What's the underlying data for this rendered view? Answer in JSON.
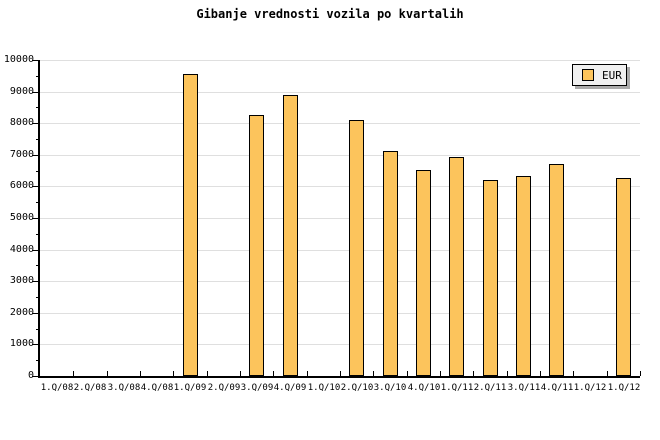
{
  "title": "Gibanje vrednosti vozila po kvartalih",
  "legend": {
    "label": "EUR"
  },
  "chart_data": {
    "type": "bar",
    "title": "Gibanje vrednosti vozila po kvartalih",
    "categories": [
      "1.Q/08",
      "2.Q/08",
      "3.Q/08",
      "4.Q/08",
      "1.Q/09",
      "2.Q/09",
      "3.Q/09",
      "4.Q/09",
      "1.Q/10",
      "2.Q/10",
      "3.Q/10",
      "4.Q/10",
      "1.Q/11",
      "2.Q/11",
      "3.Q/11",
      "4.Q/11",
      "1.Q/12",
      "1.Q/12"
    ],
    "series": [
      {
        "name": "EUR",
        "values": [
          0,
          0,
          0,
          0,
          9570,
          0,
          8250,
          8900,
          0,
          8110,
          7130,
          6520,
          6930,
          6200,
          6330,
          6700,
          0,
          6270
        ]
      }
    ],
    "xlabel": "",
    "ylabel": "",
    "ylim": [
      0,
      10000
    ],
    "ytick_step": 1000,
    "ytick_minor_step": 500,
    "grid": "horizontal-major",
    "legend_position": "top-right",
    "colors": {
      "bar_fill": "#FCC45C",
      "bar_border": "#000000",
      "grid": "#DFDFDF",
      "axis": "#000000",
      "legend_bg": "#F0F0F0",
      "legend_shadow": "#AAAAAA",
      "background": "#FFFFFF",
      "text": "#000000"
    }
  }
}
